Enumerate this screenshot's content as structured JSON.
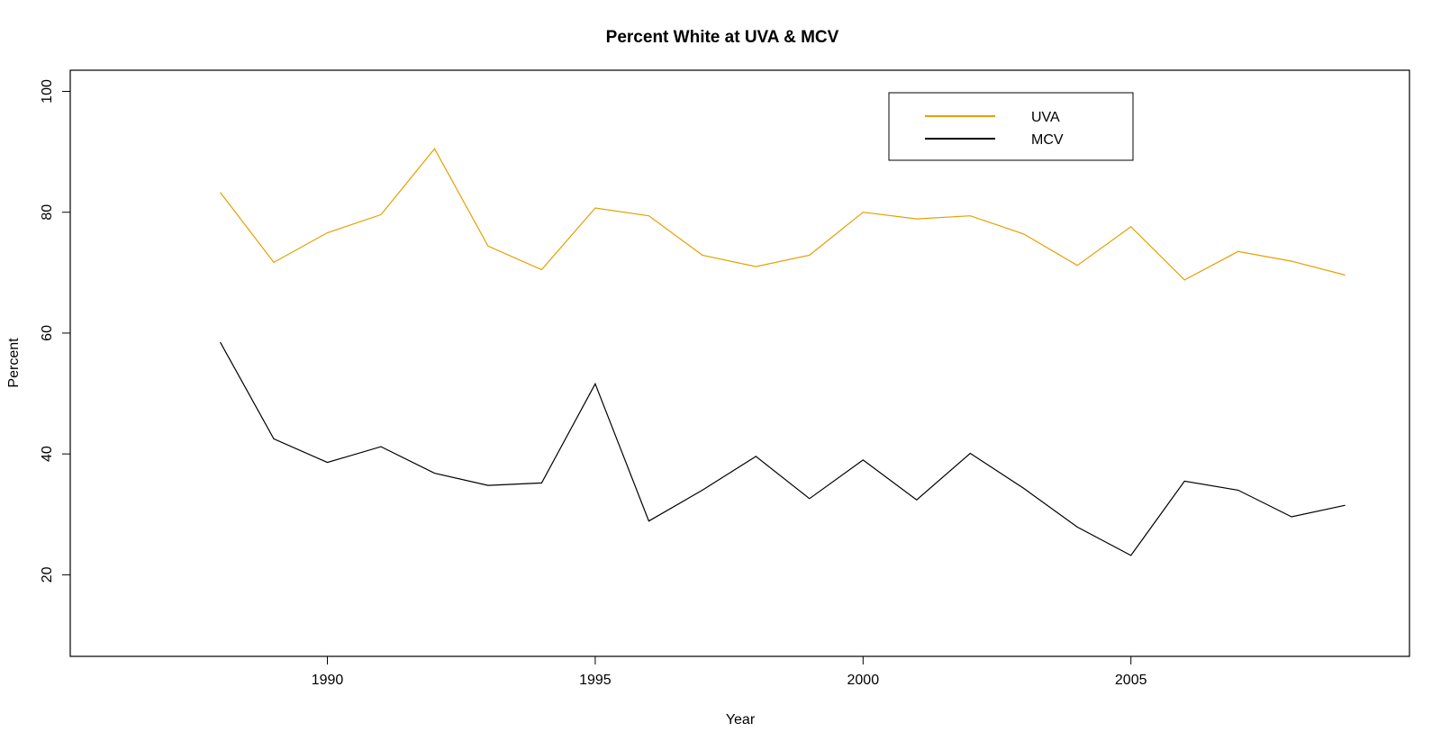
{
  "chart_data": {
    "type": "line",
    "title": "Percent White at UVA & MCV",
    "xlabel": "Year",
    "ylabel": "Percent",
    "xlim": [
      1985.2,
      2010.2
    ],
    "ylim": [
      6.5,
      103.5
    ],
    "x_ticks": [
      1990,
      1995,
      2000,
      2005
    ],
    "y_ticks": [
      20,
      40,
      60,
      80,
      100
    ],
    "grid": false,
    "legend_position": "top-right",
    "x": [
      1988,
      1989,
      1990,
      1991,
      1992,
      1993,
      1994,
      1995,
      1996,
      1997,
      1998,
      1999,
      2000,
      2001,
      2002,
      2003,
      2004,
      2005,
      2006,
      2007,
      2008,
      2009
    ],
    "series": [
      {
        "name": "UVA",
        "color": "#e69f00",
        "values": [
          83.3,
          71.7,
          76.6,
          79.6,
          90.5,
          74.4,
          70.5,
          80.7,
          79.4,
          72.9,
          71.0,
          72.9,
          80.0,
          78.9,
          79.4,
          76.4,
          71.2,
          77.6,
          68.8,
          73.5,
          71.9,
          69.6
        ]
      },
      {
        "name": "MCV",
        "color": "#000000",
        "values": [
          58.5,
          42.5,
          38.6,
          41.2,
          36.8,
          34.8,
          35.2,
          51.6,
          28.9,
          34.0,
          39.6,
          32.6,
          39.0,
          32.4,
          40.1,
          34.3,
          27.9,
          23.2,
          35.5,
          34.0,
          29.6,
          31.5
        ]
      }
    ]
  }
}
